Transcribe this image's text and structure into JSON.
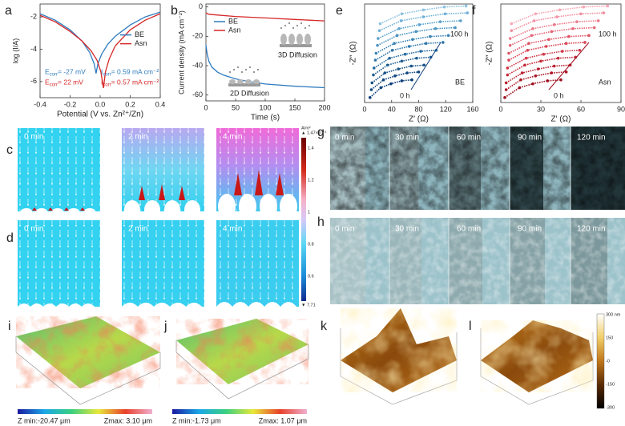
{
  "chart_data": [
    {
      "type": "line",
      "label": "a",
      "x_label": "Potential (V vs. Zn²⁺/Zn)",
      "y_label": "log (I/A)",
      "xlim": [
        -0.4,
        0.4
      ],
      "xticks": [
        -0.4,
        -0.2,
        {
          "value": 0,
          "label": "0.0"
        },
        0.2,
        0.4
      ],
      "ylim": [
        -7,
        -1.2
      ],
      "yticks": [
        -2,
        -4,
        -6
      ],
      "legend": "center right",
      "series": [
        {
          "name": "BE",
          "color": "#2f7bbf",
          "x": [
            -0.4,
            -0.3,
            -0.2,
            -0.12,
            -0.07,
            -0.04,
            -0.027,
            -0.015,
            0.01,
            0.05,
            0.1,
            0.2,
            0.3,
            0.4
          ],
          "values": [
            -1.8,
            -2.2,
            -2.8,
            -3.5,
            -4.2,
            -4.9,
            -5.5,
            -4.9,
            -4.3,
            -3.7,
            -3.2,
            -2.5,
            -2.0,
            -1.7
          ]
        },
        {
          "name": "Asn",
          "color": "#d62728",
          "x": [
            -0.4,
            -0.3,
            -0.2,
            -0.12,
            -0.06,
            -0.02,
            0.005,
            0.022,
            0.035,
            0.06,
            0.1,
            0.2,
            0.3,
            0.4
          ],
          "values": [
            -1.9,
            -2.3,
            -2.9,
            -3.5,
            -4.1,
            -4.7,
            -5.4,
            -6.4,
            -5.4,
            -4.6,
            -3.8,
            -2.8,
            -2.2,
            -1.8
          ]
        }
      ],
      "annotations": [
        {
          "color": "#2f7bbf",
          "items": [
            {
              "main": "E",
              "sub": "corr",
              "rest": " = -27 mV"
            },
            {
              "main": "I",
              "sub": "corr",
              "rest": " = 0.59 mA cm⁻²"
            }
          ]
        },
        {
          "color": "#d62728",
          "items": [
            {
              "main": "E",
              "sub": "corr",
              "rest": " = 22 mV"
            },
            {
              "main": "I",
              "sub": "corr",
              "rest": " = 0.57 mA cm⁻²"
            }
          ]
        }
      ]
    },
    {
      "type": "line",
      "label": "b",
      "x_label": "Time (s)",
      "y_label": "Current density (mA cm⁻²)",
      "xlim": [
        0,
        200
      ],
      "xticks": [
        0,
        50,
        100,
        150,
        200
      ],
      "ylim": [
        -64,
        2
      ],
      "yticks": [
        0,
        -20,
        -40,
        -60
      ],
      "legend": "upper left",
      "series": [
        {
          "name": "BE",
          "color": "#2f7bbf",
          "x": [
            0,
            2,
            5,
            10,
            20,
            30,
            50,
            75,
            100,
            150,
            200
          ],
          "values": [
            -26,
            -32,
            -37,
            -41,
            -44.5,
            -46.5,
            -49,
            -51,
            -52.5,
            -54,
            -55
          ]
        },
        {
          "name": "Asn",
          "color": "#d62728",
          "x": [
            0,
            2,
            5,
            20,
            50,
            100,
            150,
            200
          ],
          "values": [
            -4,
            -4.5,
            -5,
            -5.5,
            -6.5,
            -7.5,
            -8.5,
            -9.5
          ]
        }
      ],
      "annotations": [
        "2D Diffusion",
        "3D Diffusion"
      ]
    },
    {
      "type": "line",
      "label": "e",
      "marker": "circle",
      "x_label": "Z′ (Ω)",
      "y_label": "-Z″ (Ω)",
      "xlim": [
        0,
        160
      ],
      "xticks": [
        0,
        40,
        80,
        120,
        160
      ],
      "ylim": [
        0,
        100
      ],
      "series": [
        {
          "color": "#0b3d7a",
          "x": [
            8,
            24,
            39,
            55,
            70
          ],
          "values": [
            5,
            15,
            19,
            22,
            23
          ]
        },
        {
          "color": "#11477f",
          "x": [
            10,
            28,
            45,
            63,
            80
          ],
          "values": [
            13,
            23,
            27,
            30,
            31
          ]
        },
        {
          "color": "#175287",
          "x": [
            11,
            30,
            50,
            69,
            88
          ],
          "values": [
            20,
            30,
            34,
            37,
            38
          ]
        },
        {
          "color": "#1e5e92",
          "x": [
            13,
            34,
            55,
            77,
            98
          ],
          "values": [
            28,
            38,
            42,
            45,
            46
          ]
        },
        {
          "color": "#266a9e",
          "x": [
            14,
            37,
            60,
            83,
            106
          ],
          "values": [
            35,
            45,
            49,
            52,
            53
          ]
        },
        {
          "color": "#2f77aa",
          "x": [
            16,
            41,
            66,
            91,
            116
          ],
          "values": [
            43,
            53,
            57,
            60,
            61
          ]
        },
        {
          "color": "#3a85b6",
          "x": [
            17,
            44,
            71,
            97,
            124
          ],
          "values": [
            50,
            60,
            64,
            67,
            68
          ]
        },
        {
          "color": "#4893c2",
          "x": [
            19,
            48,
            76,
            105,
            134
          ],
          "values": [
            58,
            68,
            72,
            75,
            76
          ]
        },
        {
          "color": "#5aa2cc",
          "x": [
            20,
            51,
            81,
            112,
            142
          ],
          "values": [
            65,
            75,
            79,
            82,
            83
          ]
        },
        {
          "color": "#70b1d6",
          "x": [
            22,
            54,
            87,
            119,
            152
          ],
          "values": [
            73,
            83,
            87,
            90,
            91
          ]
        },
        {
          "color": "#8cc2e0",
          "x": [
            23,
            55,
            87,
            118,
            150
          ],
          "values": [
            80,
            90,
            94,
            97,
            98
          ]
        }
      ],
      "annotations": [
        "100 h",
        "0 h",
        "BE"
      ]
    },
    {
      "type": "line",
      "label": "f",
      "marker": "circle",
      "x_label": "Z′ (Ω)",
      "y_label": "-Z″ (Ω)",
      "xlim": [
        0,
        90
      ],
      "xticks": [
        0,
        30,
        60,
        90
      ],
      "ylim": [
        0,
        100
      ],
      "series": [
        {
          "color": "#9e0f1f",
          "x": [
            3,
            14,
            24,
            35,
            45
          ],
          "values": [
            5,
            15,
            19,
            22,
            23
          ]
        },
        {
          "color": "#ab1726",
          "x": [
            4,
            15,
            26,
            38,
            49
          ],
          "values": [
            13,
            23,
            27,
            30,
            31
          ]
        },
        {
          "color": "#b8202f",
          "x": [
            4,
            16,
            28,
            40,
            52
          ],
          "values": [
            20,
            30,
            34,
            37,
            38
          ]
        },
        {
          "color": "#c42a39",
          "x": [
            5,
            18,
            30,
            43,
            56
          ],
          "values": [
            28,
            38,
            42,
            45,
            46
          ]
        },
        {
          "color": "#cf3646",
          "x": [
            5,
            19,
            32,
            46,
            59
          ],
          "values": [
            35,
            45,
            49,
            52,
            53
          ]
        },
        {
          "color": "#d84455",
          "x": [
            6,
            20,
            34,
            49,
            63
          ],
          "values": [
            43,
            53,
            57,
            60,
            61
          ]
        },
        {
          "color": "#e05466",
          "x": [
            6,
            21,
            36,
            51,
            66
          ],
          "values": [
            50,
            60,
            64,
            67,
            68
          ]
        },
        {
          "color": "#e76678",
          "x": [
            7,
            23,
            38,
            54,
            70
          ],
          "values": [
            58,
            68,
            72,
            75,
            76
          ]
        },
        {
          "color": "#ed7a8b",
          "x": [
            7,
            24,
            40,
            57,
            73
          ],
          "values": [
            65,
            75,
            79,
            82,
            83
          ]
        },
        {
          "color": "#f290a0",
          "x": [
            8,
            25,
            42,
            60,
            77
          ],
          "values": [
            73,
            83,
            87,
            90,
            91
          ]
        },
        {
          "color": "#f6a8b5",
          "x": [
            8,
            26,
            44,
            62,
            80
          ],
          "values": [
            80,
            90,
            94,
            97,
            98
          ]
        }
      ],
      "annotations": [
        "100 h",
        "0 h",
        "Asn"
      ]
    }
  ],
  "panels": {
    "c": {
      "label": "c",
      "frames": [
        "0 min",
        "2 min",
        "4 min"
      ]
    },
    "d": {
      "label": "d",
      "frames": [
        "0 min",
        "2 min",
        "4 min"
      ]
    },
    "sim_colorbar": {
      "unit": "A/m²",
      "max_label": "▲ 1.47×10⁻¹",
      "ticks": [
        "1.4",
        "1.2",
        "1",
        "0.8",
        "0.6"
      ],
      "min_label": "▼ 7.71"
    },
    "g": {
      "label": "g",
      "frames": [
        "0 min",
        "30 min",
        "60 min",
        "90 min",
        "120 min"
      ]
    },
    "h": {
      "label": "h",
      "frames": [
        "0 min",
        "30 min",
        "60 min",
        "90 min",
        "120 min"
      ]
    },
    "i": {
      "label": "i",
      "zmin": "Z min:-20.47 μm",
      "zmax": "Zmax: 3.10 μm"
    },
    "j": {
      "label": "j",
      "zmin": "Z min:-1.73 μm",
      "zmax": "Zmax: 1.07 μm"
    },
    "k": {
      "label": "k"
    },
    "l": {
      "label": "l"
    },
    "afm_colorbar": {
      "ticks": [
        "300 nm",
        "150",
        "-0",
        "-150",
        "-300"
      ]
    }
  }
}
